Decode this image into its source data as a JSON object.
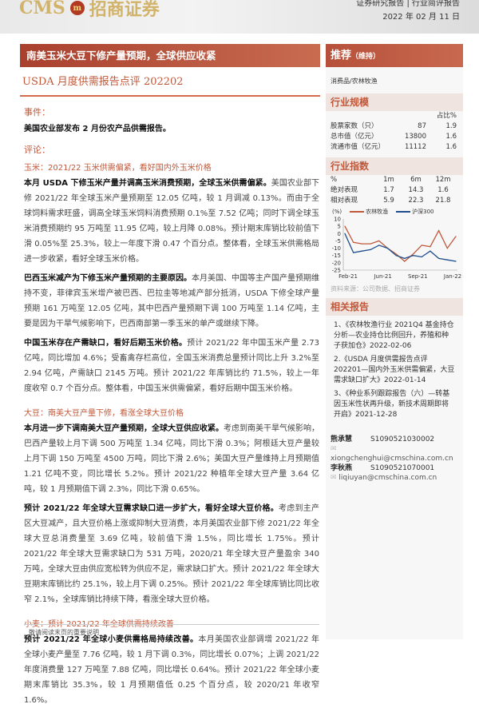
{
  "header": {
    "logo_text": "CMS",
    "logo_cn": "招商证券",
    "report_type": "证券研究报告 | 行业简评报告",
    "date": "2022 年 02 月 11 日"
  },
  "title": "南美玉米大豆下修产量预期，全球供应收紧",
  "subtitle": "USDA 月度供需报告点评 202202",
  "main": {
    "event_heading": "事件：",
    "event_text": "美国农业部发布 2 月份农产品供需报告。",
    "comment_heading": "评论：",
    "corn_heading": "玉米：2021/22 玉米供需偏紧，看好国内外玉米价格",
    "corn_p1_bold": "本月 USDA 下修玉米产量并调高玉米消费预期，全球玉米供需偏紧。",
    "corn_p1": "美国农业部下修 2021/22 年全球玉米产量预期至 12.05 亿吨，较 1 月调减 0.13%。而由于全球饲料需求旺盛，调高全球玉米饲料消费预期 0.1%至 7.52 亿吨；同时下调全球玉米消费预期约 95 万吨至 11.95 亿吨，较上月降 0.08%。预计期末库销比较前值下滑 0.05%至 25.3%，较上一年度下滑 0.47 个百分点。整体看，全球玉米供需格局进一步收紧，看好全球玉米价格。",
    "corn_p2_bold": "巴西玉米减产为下修玉米产量预期的主要原因。",
    "corn_p2": "本月美国、中国等主产国产量预期维持不变，菲律宾玉米增产被巴西、巴拉圭等地减产部分抵消，USDA 下修全球产量预期 161 万吨至 12.05 亿吨，其中巴西产量预期下调 100 万吨至 1.14 亿吨，主要是因为干旱气候影响下，巴西南部第一季玉米的单产或继续下降。",
    "corn_p3_bold": "中国玉米存在产需缺口，看好后期玉米价格。",
    "corn_p3": "预计 2021/22 年中国玉米产量 2.73 亿吨，同比增加 4.6%；受畜禽存栏高位，全国玉米消费总量预计同比上升 3.2%至 2.94 亿吨，产需缺口 2145 万吨。预计 2021/22 年库销比约 71.5%，较上一年度收窄 0.7 个百分点。整体看，中国玉米供需偏紧，看好后期中国玉米价格。",
    "soy_heading": "大豆：南美大豆产量下修，看涨全球大豆价格",
    "soy_p1_bold": "本月进一步下调南美大豆产量预期，全球大豆供应收紧。",
    "soy_p1": "考虑到南美干旱气候影响，巴西产量较上月下调 500 万吨至 1.34 亿吨，同比下滑 0.3%；阿根廷大豆产量较上月下调 150 万吨至 4500 万吨，同比下滑 2.6%；美国大豆产量维持上月预期值 1.21 亿吨不变，同比增长 5.2%。预计 2021/22 种植年全球大豆产量 3.64 亿吨，较 1 月预期值下调 2.3%，同比下滑 0.65%。",
    "soy_p2_bold": "预计 2021/22 年全球大豆需求缺口进一步扩大，看好全球大豆价格。",
    "soy_p2": "考虑到主产区大豆减产，且大豆价格上涨或抑制大豆消费，本月美国农业部下修 2021/22 年全球大豆总消费量至 3.69 亿吨，较前值下滑 1.5%，同比增长 1.75%。预计 2021/22 年全球大豆需求缺口为 531 万吨，2020/21 年全球大豆产量盈余 340 万吨，全球大豆由供应宽松转为供应不足，需求缺口扩大。预计 2021/22 年全球大豆期末库销比约 25.1%，较上月下调 0.25%。预计 2021/22 年全球库销比同比收窄 2.1%，全球库销比持续下降，看涨全球大豆价格。",
    "wheat_heading": "小麦：预计 2021/22 年全球供需持续改善",
    "wheat_p1_bold": "预计 2021/22 年全球小麦供需格局持续改善。",
    "wheat_p1": "本月美国农业部调增 2021/22 年全球小麦产量至 7.76 亿吨，较 1 月下调 0.3%，同比增长 0.07%；上调 2021/22 年度消费量 127 万吨至 7.88 亿吨，同比增长 0.64%。预计 2021/22 年全球小麦期末库销比 35.3%，较 1 月预期值低 0.25 个百分点，较 2020/21 年收窄 1.6%。"
  },
  "sidebar": {
    "rating": "推荐",
    "rating_note": "（维持）",
    "sector": "消费品/农林牧渔",
    "scale_heading": "行业规模",
    "scale_col": "占比%",
    "scale_rows": [
      {
        "label": "股票家数（只）",
        "value": "87",
        "pct": "1.9"
      },
      {
        "label": "总市值（亿元）",
        "value": "13800",
        "pct": "1.6"
      },
      {
        "label": "流通市值（亿元）",
        "value": "11112",
        "pct": "1.6"
      }
    ],
    "index_heading": "行业指数",
    "index_header": [
      "%",
      "1m",
      "6m",
      "12m"
    ],
    "index_rows": [
      {
        "label": "绝对表现",
        "v": [
          "1.7",
          "14.3",
          "1.6"
        ]
      },
      {
        "label": "相对表现",
        "v": [
          "5.9",
          "22.3",
          "21.8"
        ]
      }
    ],
    "chart_source": "资料来源：公司数据、招商证券",
    "reports_heading": "相关报告",
    "reports": [
      "1、《农林牧渔行业 2021Q4 基金持仓分析—农业持仓比例回升，养殖和种子获加仓》2022-02-06",
      "2.《USDA 月度供需报告点评 202201—国内外玉米供需偏紧，大豆需求缺口扩大》2022-01-14",
      "3、《种业系列跟踪报告（六）—转基因玉米性状再升级，新技术周期即将开启》2021-12-28"
    ],
    "analysts": [
      {
        "name": "熊承慧",
        "id": "S1090521030002",
        "email": "xiongchenghui@cmschina.com.cn"
      },
      {
        "name": "李秋燕",
        "id": "S1090521070001",
        "email": "liqiuyan@cmschina.com.cn"
      }
    ]
  },
  "chart_data": {
    "type": "line",
    "ylabel": "(%)",
    "ylim": [
      -25,
      10
    ],
    "yticks": [
      "10",
      "5",
      "0",
      "-5",
      "-10",
      "-15",
      "-20",
      "-25"
    ],
    "xticks": [
      "Feb-21",
      "Jun-21",
      "Sep-21",
      "Jan-22"
    ],
    "x": [
      "2021-02",
      "2021-03",
      "2021-04",
      "2021-05",
      "2021-06",
      "2021-07",
      "2021-08",
      "2021-09",
      "2021-10",
      "2021-11",
      "2021-12",
      "2022-01a",
      "2022-01b",
      "2022-02"
    ],
    "series": [
      {
        "name": "农林牧渔",
        "color": "#c0583a",
        "values": [
          5,
          -6,
          -7,
          -7,
          -5,
          -10,
          -14,
          -19,
          -14,
          -8,
          -9,
          2,
          -10,
          -2
        ]
      },
      {
        "name": "沪深300",
        "color": "#1f4e8c",
        "values": [
          0,
          -13,
          -12,
          -11,
          -8,
          -10,
          -15,
          -17,
          -15,
          -16,
          -12,
          -17,
          -18,
          -19
        ]
      }
    ]
  },
  "footer": "敬请阅读末页的重要说明",
  "colors": {
    "accent": "#c0583a"
  }
}
